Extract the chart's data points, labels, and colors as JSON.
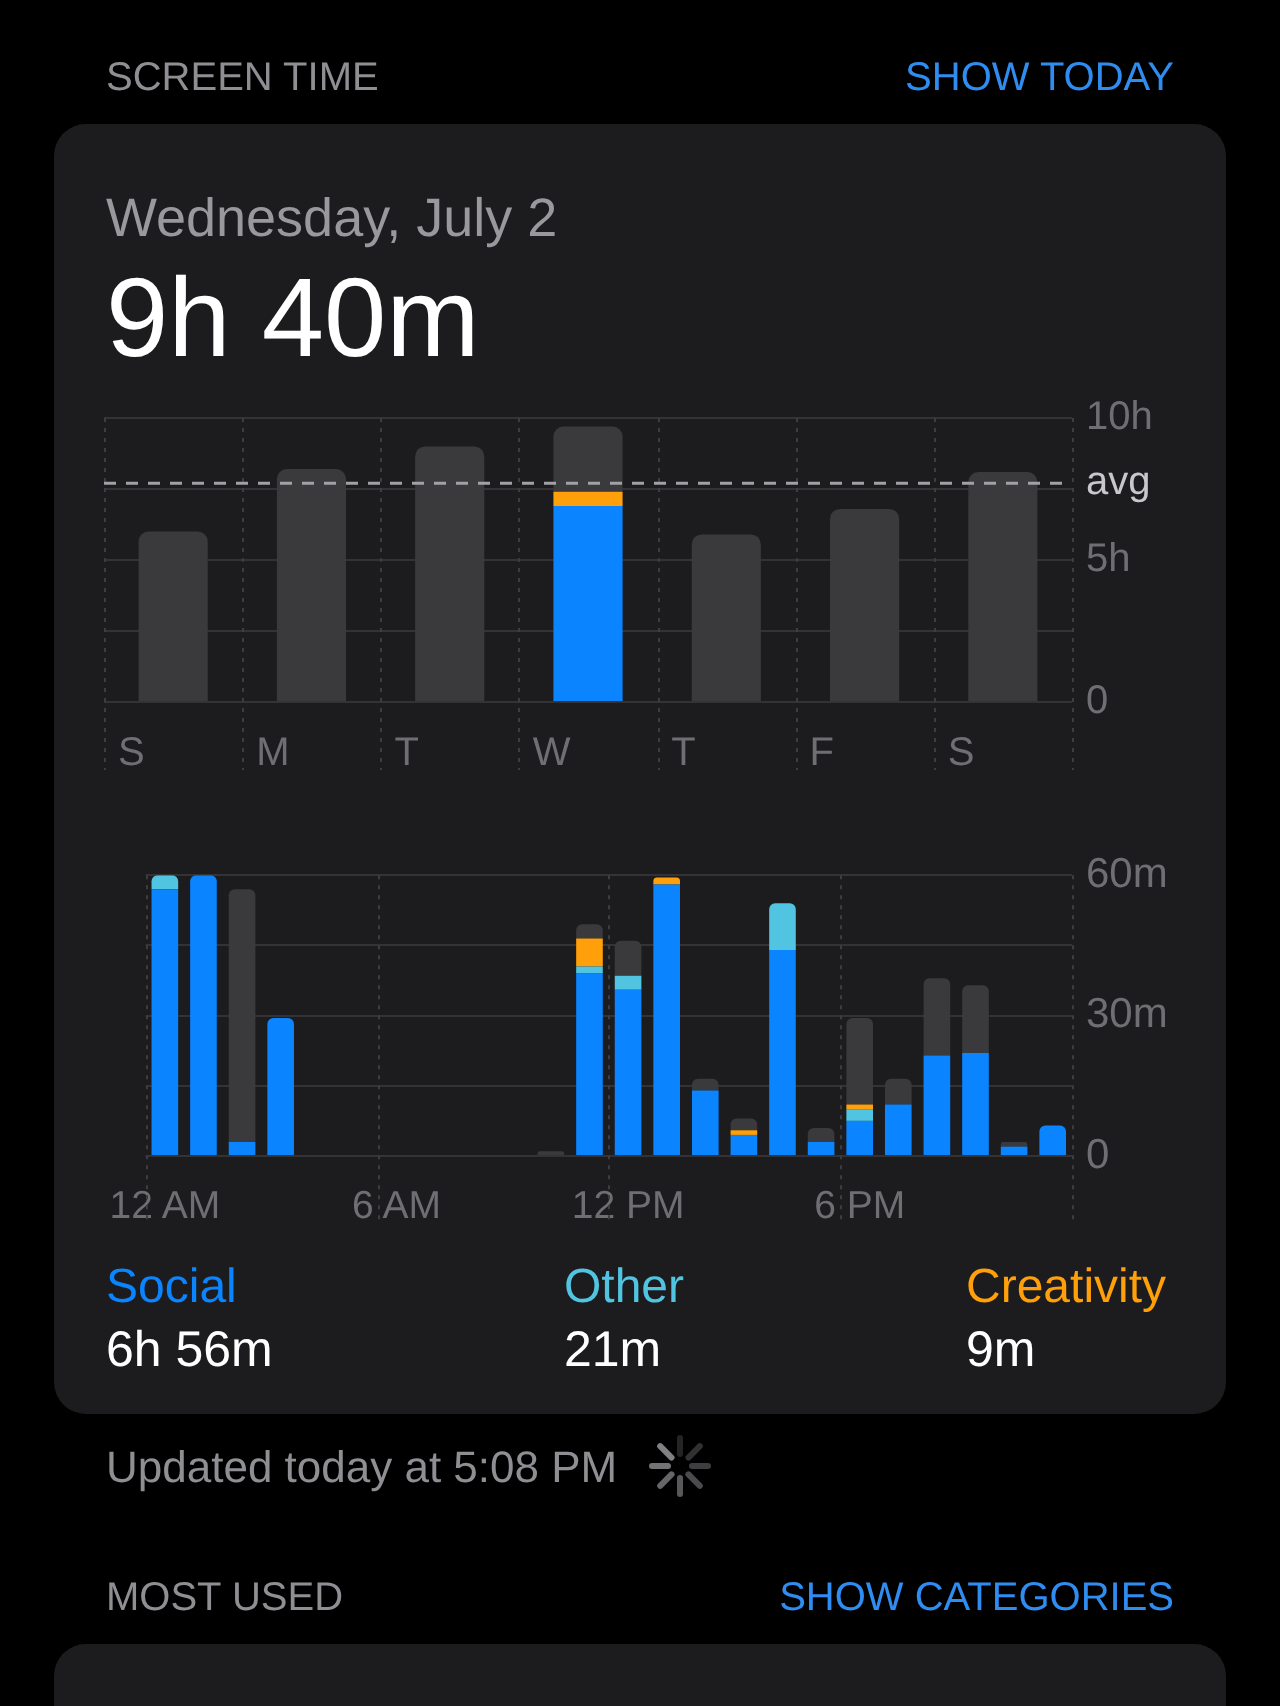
{
  "chart_data": [
    {
      "type": "bar",
      "title": "Wednesday, July 2",
      "subtitle": "9h 40m",
      "annotations": [
        "SCREEN TIME",
        "SHOW TODAY"
      ],
      "categories": [
        "S",
        "M",
        "T",
        "W",
        "T",
        "F",
        "S"
      ],
      "stacked": true,
      "series": [
        {
          "color": "#0a84ff",
          "values": [
            null,
            null,
            null,
            6.9,
            null,
            null,
            null
          ]
        },
        {
          "color": "#ff9f0a",
          "values": [
            null,
            null,
            null,
            0.5,
            null,
            null,
            null
          ]
        },
        {
          "color": "#3a3a3c",
          "values": [
            6,
            8.2,
            9,
            2.3,
            5.9,
            6.8,
            8.1
          ]
        }
      ],
      "ylim": [
        0,
        10
      ],
      "yticks": [
        0,
        {
          "value": 2.5,
          "label": null
        },
        {
          "value": 5,
          "label": "5h"
        },
        {
          "value": 7.5,
          "label": null
        },
        {
          "value": 10,
          "label": "10h"
        }
      ],
      "grid": true,
      "ref_lines": [
        {
          "axis": "y",
          "value": 7.7,
          "label": "avg",
          "line_style": "dashed"
        }
      ]
    },
    {
      "type": "bar",
      "categories": [
        "12 AM",
        null,
        null,
        null,
        null,
        null,
        "6 AM",
        null,
        null,
        null,
        null,
        null,
        "12 PM",
        null,
        null,
        null,
        null,
        null,
        "6 PM",
        null,
        null,
        null,
        null,
        null
      ],
      "stacked": true,
      "series": [
        {
          "name": "Social",
          "color": "#0a84ff",
          "values": [
            57,
            60,
            3,
            29.5,
            null,
            null,
            null,
            null,
            null,
            null,
            null,
            39,
            35.5,
            58,
            14,
            4.5,
            44,
            3,
            7.5,
            11,
            21.5,
            22,
            2,
            6.5
          ]
        },
        {
          "name": "Other",
          "color": "#50c4e0",
          "values": [
            3,
            null,
            null,
            null,
            null,
            null,
            null,
            null,
            null,
            null,
            null,
            1.5,
            3,
            null,
            null,
            null,
            10,
            null,
            2.5,
            null,
            null,
            null,
            null,
            null
          ]
        },
        {
          "name": "Creativity",
          "color": "#ff9f0a",
          "values": [
            null,
            null,
            null,
            null,
            null,
            null,
            null,
            null,
            null,
            null,
            null,
            6,
            null,
            1.5,
            null,
            1,
            null,
            null,
            1,
            null,
            null,
            null,
            null,
            null
          ]
        },
        {
          "color": "#3a3a3c",
          "values": [
            null,
            null,
            54,
            null,
            null,
            null,
            null,
            null,
            null,
            null,
            1,
            3,
            7.5,
            null,
            2.5,
            2.5,
            null,
            3,
            18.5,
            5.5,
            16.5,
            14.5,
            1,
            null
          ]
        }
      ],
      "ylim": [
        0,
        60
      ],
      "yticks": [
        0,
        {
          "value": 15,
          "label": null
        },
        {
          "value": 30,
          "label": "30m"
        },
        {
          "value": 45,
          "label": null
        },
        {
          "value": 60,
          "label": "60m"
        }
      ],
      "grid": true,
      "legend": "bottom",
      "annotations": [
        "6h 56m",
        "21m",
        "9m",
        "Updated today at 5:08 PM",
        "MOST USED",
        "SHOW CATEGORIES"
      ]
    }
  ]
}
